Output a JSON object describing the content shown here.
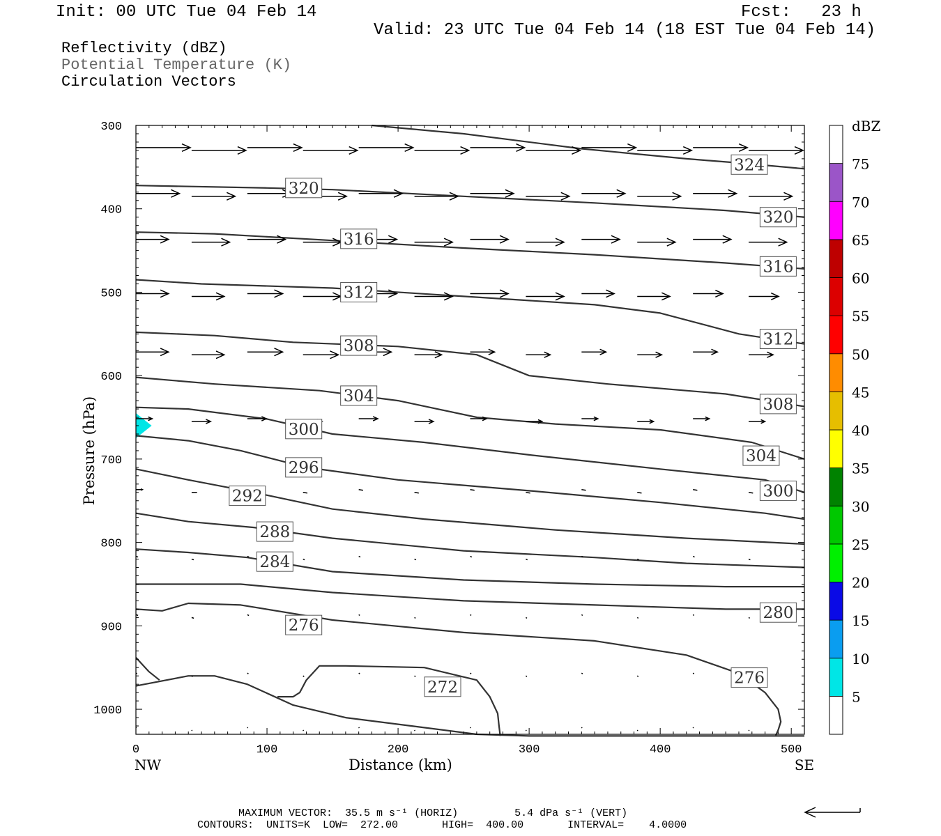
{
  "header": {
    "init": "Init: 00 UTC Tue 04 Feb 14",
    "fcst": "Fcst:   23 h",
    "valid": "Valid: 23 UTC Tue 04 Feb 14 (18 EST Tue 04 Feb 14)"
  },
  "titles": {
    "line1": "Reflectivity (dBZ)",
    "line2": "Potential Temperature (K)",
    "line3": "Circulation Vectors"
  },
  "footer": {
    "max_vector": "MAXIMUM VECTOR:  35.5 m s⁻¹ (HORIZ)         5.4 dPa s⁻¹ (VERT)",
    "contours": "CONTOURS:  UNITS=K  LOW=  272.00       HIGH=  400.00       INTERVAL=    4.0000"
  },
  "chart_data": {
    "type": "cross-section",
    "xlabel": "Distance (km)",
    "ylabel": "Pressure (hPa)",
    "xlim": [
      0,
      510
    ],
    "ylim": [
      300,
      1030
    ],
    "x_ticks": [
      0,
      100,
      200,
      300,
      400,
      500
    ],
    "y_ticks": [
      300,
      400,
      500,
      600,
      700,
      800,
      900,
      1000
    ],
    "x_end_labels": {
      "left": "NW",
      "right": "SE"
    },
    "colorbar": {
      "unit": "dBZ",
      "levels": [
        5,
        10,
        15,
        20,
        25,
        30,
        35,
        40,
        45,
        50,
        55,
        60,
        65,
        70,
        75
      ],
      "colors": [
        "#00e6e6",
        "#0a9df0",
        "#0a0ae6",
        "#00f000",
        "#00c800",
        "#008200",
        "#ffff00",
        "#e6be00",
        "#ff8c00",
        "#ff0000",
        "#dc0000",
        "#be0000",
        "#ff00ff",
        "#9b55c8"
      ]
    },
    "reflectivity": [
      {
        "value_dbz": 5,
        "x_km": [
          0,
          12,
          0
        ],
        "p_hpa": [
          645,
          660,
          675
        ]
      }
    ],
    "theta_contours": [
      {
        "value": 324,
        "label": "324",
        "x": [
          180,
          250,
          340,
          420,
          460,
          510
        ],
        "p": [
          300,
          310,
          328,
          340,
          345,
          352
        ]
      },
      {
        "value": 320,
        "label": "320",
        "x": [
          0,
          100,
          150,
          250,
          350,
          450,
          510
        ],
        "p": [
          372,
          375,
          377,
          385,
          393,
          402,
          410
        ]
      },
      {
        "value": 316,
        "label": "316",
        "x": [
          0,
          60,
          150,
          250,
          350,
          450,
          510
        ],
        "p": [
          428,
          430,
          438,
          447,
          455,
          465,
          472
        ]
      },
      {
        "value": 312,
        "label": "312",
        "x": [
          0,
          50,
          150,
          250,
          350,
          400,
          460,
          510
        ],
        "p": [
          485,
          490,
          495,
          505,
          515,
          525,
          550,
          562
        ]
      },
      {
        "value": 308,
        "label": "308",
        "x": [
          0,
          60,
          120,
          200,
          260,
          300,
          360,
          450,
          510
        ],
        "p": [
          548,
          552,
          560,
          565,
          575,
          600,
          610,
          622,
          637
        ]
      },
      {
        "value": 304,
        "label": "304",
        "x": [
          0,
          60,
          140,
          200,
          260,
          320,
          400,
          470,
          510
        ],
        "p": [
          602,
          610,
          618,
          630,
          650,
          658,
          665,
          680,
          700
        ]
      },
      {
        "value": 300,
        "label": "300",
        "x": [
          0,
          40,
          100,
          150,
          220,
          300,
          400,
          480,
          510
        ],
        "p": [
          638,
          640,
          652,
          670,
          680,
          695,
          712,
          725,
          740
        ]
      },
      {
        "value": 296,
        "label": "296",
        "x": [
          0,
          40,
          80,
          130,
          200,
          300,
          400,
          480,
          510
        ],
        "p": [
          672,
          678,
          690,
          710,
          725,
          738,
          752,
          765,
          772
        ]
      },
      {
        "value": 292,
        "label": "292",
        "x": [
          0,
          40,
          90,
          150,
          220,
          320,
          420,
          510
        ],
        "p": [
          712,
          725,
          740,
          760,
          772,
          785,
          795,
          802
        ]
      },
      {
        "value": 288,
        "label": "288",
        "x": [
          0,
          40,
          90,
          150,
          250,
          350,
          420,
          510
        ],
        "p": [
          765,
          775,
          782,
          795,
          810,
          818,
          825,
          830
        ]
      },
      {
        "value": 284,
        "label": "284",
        "x": [
          0,
          40,
          85,
          150,
          250,
          350,
          450,
          510
        ],
        "p": [
          808,
          812,
          818,
          835,
          845,
          850,
          853,
          853
        ]
      },
      {
        "value": 280,
        "label": "280",
        "x": [
          0,
          80,
          150,
          250,
          350,
          450,
          510
        ],
        "p": [
          850,
          850,
          860,
          870,
          875,
          880,
          880
        ]
      },
      {
        "value": 276,
        "label": "276",
        "x": [
          0,
          20,
          40,
          80,
          150,
          250,
          350,
          420,
          460,
          480,
          490,
          492,
          490,
          488
        ],
        "p": [
          880,
          882,
          873,
          875,
          893,
          908,
          918,
          935,
          957,
          980,
          1000,
          1015,
          1025,
          1032
        ]
      },
      {
        "value": 272,
        "label": "272",
        "x": [
          108,
          120,
          125,
          130,
          140,
          160,
          220,
          260,
          270,
          276,
          277,
          278
        ],
        "p": [
          985,
          985,
          980,
          965,
          948,
          948,
          950,
          965,
          985,
          1005,
          1020,
          1032
        ]
      },
      {
        "value": 272,
        "label": "",
        "x": [
          0,
          10,
          18
        ],
        "p": [
          938,
          955,
          965
        ]
      },
      {
        "value": 272,
        "label": "",
        "x": [
          0,
          40,
          60,
          85,
          120,
          160,
          210,
          260,
          300,
          400,
          510
        ],
        "p": [
          972,
          960,
          960,
          970,
          995,
          1010,
          1020,
          1030,
          1032,
          1032,
          1032
        ]
      }
    ],
    "label_positions": [
      {
        "label": "324",
        "x": 468,
        "p": 347
      },
      {
        "label": "320",
        "x": 128,
        "p": 375
      },
      {
        "label": "316",
        "x": 170,
        "p": 436
      },
      {
        "label": "312",
        "x": 170,
        "p": 500
      },
      {
        "label": "308",
        "x": 170,
        "p": 564
      },
      {
        "label": "304",
        "x": 170,
        "p": 624
      },
      {
        "label": "300",
        "x": 128,
        "p": 664
      },
      {
        "label": "296",
        "x": 128,
        "p": 710
      },
      {
        "label": "292",
        "x": 85,
        "p": 744
      },
      {
        "label": "288",
        "x": 106,
        "p": 787
      },
      {
        "label": "284",
        "x": 106,
        "p": 823
      },
      {
        "label": "280",
        "x": 490,
        "p": 884
      },
      {
        "label": "276",
        "x": 128,
        "p": 899
      },
      {
        "label": "276",
        "x": 468,
        "p": 962
      },
      {
        "label": "272",
        "x": 234,
        "p": 973
      },
      {
        "label": "300",
        "x": 490,
        "p": 738
      },
      {
        "label": "304",
        "x": 477,
        "p": 696
      },
      {
        "label": "308",
        "x": 490,
        "p": 634
      },
      {
        "label": "312",
        "x": 490,
        "p": 556
      },
      {
        "label": "316",
        "x": 490,
        "p": 469
      },
      {
        "label": "320",
        "x": 490,
        "p": 410
      }
    ],
    "vector_rows": [
      {
        "p": 330,
        "u": [
          1.0,
          1.0,
          1.0,
          1.0,
          1.0,
          1.0,
          1.0,
          1.0,
          1.0,
          1.0,
          1.0,
          1.0
        ]
      },
      {
        "p": 385,
        "u": [
          0.8,
          0.8,
          0.8,
          0.8,
          0.8,
          0.8,
          0.8,
          0.8,
          0.8,
          0.8,
          0.8,
          0.8
        ]
      },
      {
        "p": 440,
        "u": [
          0.6,
          0.7,
          0.7,
          0.7,
          0.7,
          0.7,
          0.7,
          0.7,
          0.7,
          0.7,
          0.7,
          0.7
        ]
      },
      {
        "p": 505,
        "u": [
          0.6,
          0.6,
          0.65,
          0.7,
          0.7,
          0.7,
          0.7,
          0.7,
          0.6,
          0.6,
          0.55,
          0.55
        ]
      },
      {
        "p": 575,
        "u": [
          0.6,
          0.6,
          0.65,
          0.65,
          0.6,
          0.5,
          0.45,
          0.45,
          0.45,
          0.45,
          0.45,
          0.45
        ]
      },
      {
        "p": 655,
        "u": [
          0.3,
          0.35,
          0.35,
          0.35,
          0.35,
          0.35,
          0.3,
          0.3,
          0.3,
          0.3,
          0.3,
          0.3
        ]
      },
      {
        "p": 740,
        "u": [
          0.12,
          0.1,
          0.08,
          0.08,
          0.08,
          0.08,
          0.08,
          0.08,
          0.08,
          0.08,
          0.08,
          0.08
        ]
      },
      {
        "p": 820,
        "u": [
          0.04,
          0.04,
          0.03,
          0.03,
          0.03,
          0.03,
          0.03,
          0.03,
          0.03,
          0.03,
          0.03,
          0.03
        ]
      },
      {
        "p": 890,
        "u": [
          0.04,
          0.04,
          0.03,
          0.02,
          0.02,
          0.02,
          0.02,
          0.02,
          0.02,
          0.02,
          0.02,
          0.02
        ]
      },
      {
        "p": 960,
        "u": [
          0.02,
          0.02,
          0.02,
          0.02,
          0.02,
          0.02,
          0.02,
          0.02,
          0.02,
          0.02,
          0.02,
          0.02
        ]
      },
      {
        "p": 1025,
        "u": [
          0.01,
          0.01,
          0.01,
          0.01,
          0.01,
          0.01,
          0.01,
          0.01,
          0.01,
          0.01,
          0.01,
          0.01
        ]
      }
    ]
  }
}
